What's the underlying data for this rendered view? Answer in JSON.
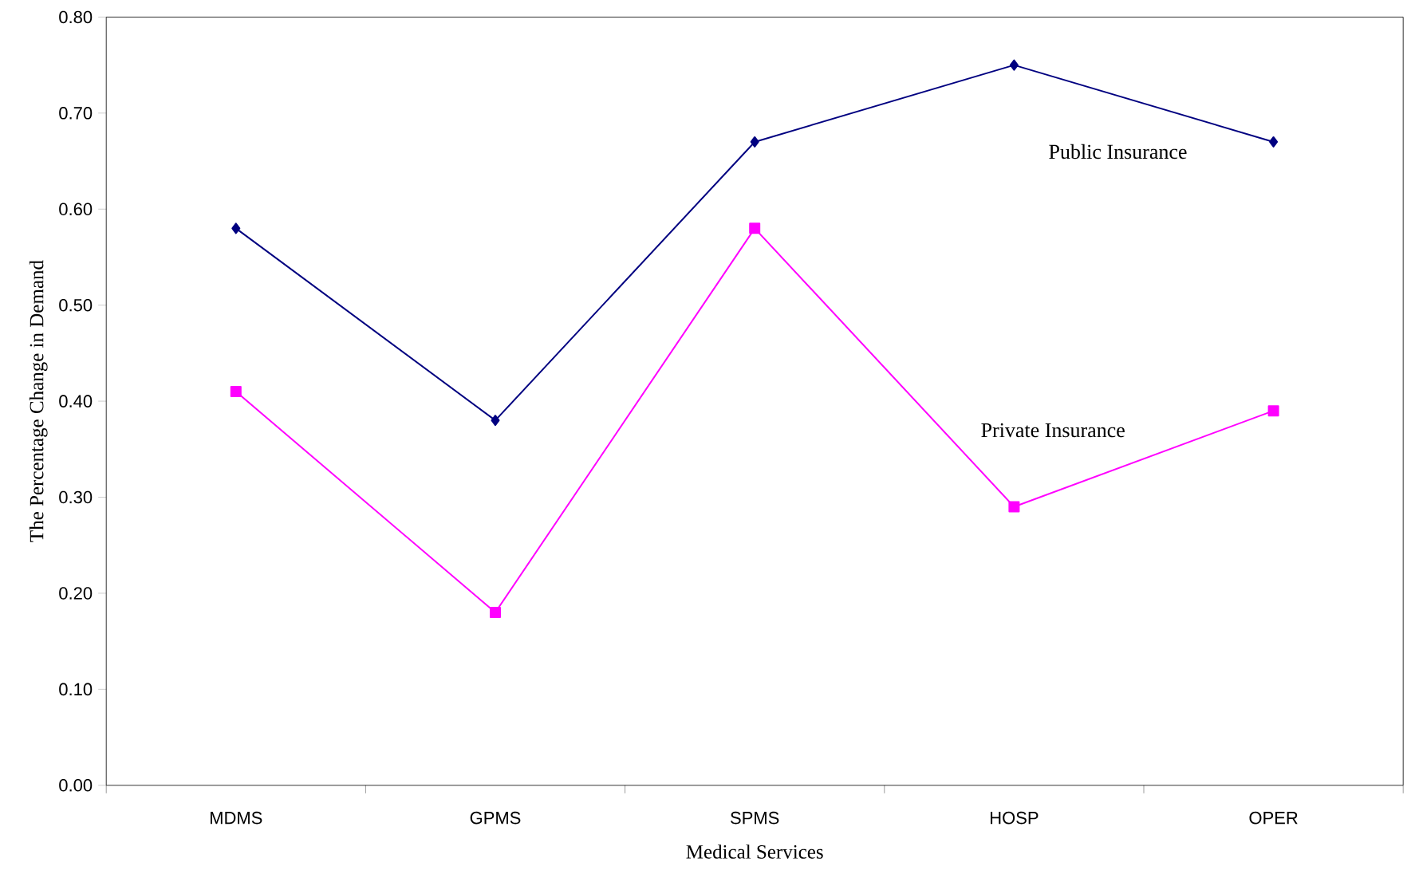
{
  "chart_data": {
    "type": "line",
    "xlabel": "Medical Services",
    "ylabel": "The Percentage Change in Demand",
    "categories": [
      "MDMS",
      "GPMS",
      "SPMS",
      "HOSP",
      "OPER"
    ],
    "series": [
      {
        "name": "Public Insurance",
        "color": "#000080",
        "marker": "diamond",
        "values": [
          0.58,
          0.38,
          0.67,
          0.75,
          0.67
        ]
      },
      {
        "name": "Private Insurance",
        "color": "#ff00ff",
        "marker": "square",
        "values": [
          0.41,
          0.18,
          0.58,
          0.29,
          0.39
        ]
      }
    ],
    "ylim": [
      0,
      0.8
    ],
    "yticks": [
      {
        "value": 0,
        "label": "0.00"
      },
      {
        "value": 0.1,
        "label": "0.10"
      },
      {
        "value": 0.2,
        "label": "0.20"
      },
      {
        "value": 0.3,
        "label": "0.30"
      },
      {
        "value": 0.4,
        "label": "0.40"
      },
      {
        "value": 0.5,
        "label": "0.50"
      },
      {
        "value": 0.6,
        "label": "0.60"
      },
      {
        "value": 0.7,
        "label": "0.70"
      },
      {
        "value": 0.8,
        "label": "0.80"
      }
    ],
    "grid": false,
    "legend": false,
    "line_style": "solid"
  }
}
